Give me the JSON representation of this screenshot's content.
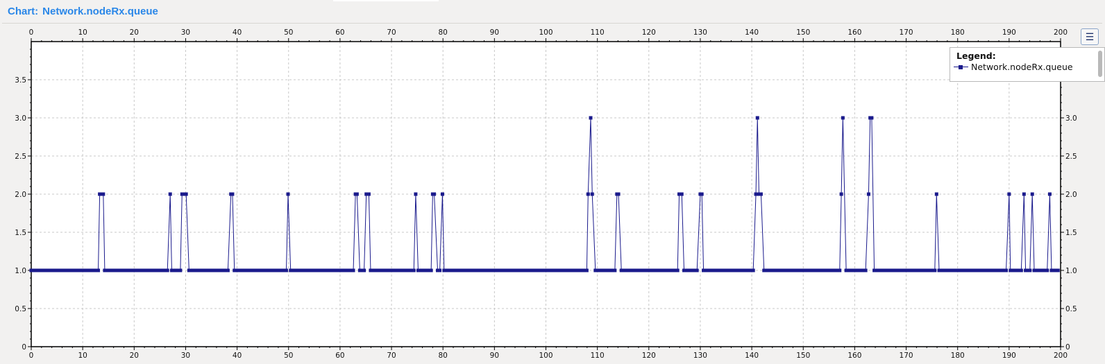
{
  "window": {
    "title_prefix": "Chart:",
    "title": "Network.nodeRx.queue"
  },
  "legend": {
    "title": "Legend:",
    "button_icon": "legend-list-icon"
  },
  "colors": {
    "series": "#1a1a8c",
    "title": "#2a87e8",
    "grid": "#c8c8c8"
  },
  "chart_data": {
    "type": "line",
    "title": "",
    "xlabel": "",
    "ylabel": "",
    "xlim": [
      0,
      200
    ],
    "ylim": [
      0,
      4
    ],
    "x_ticks": [
      0,
      10,
      20,
      30,
      40,
      50,
      60,
      70,
      80,
      90,
      100,
      110,
      120,
      130,
      140,
      150,
      160,
      170,
      180,
      190,
      200
    ],
    "y_ticks_left": [
      0,
      0.5,
      1.0,
      1.5,
      2.0,
      2.5,
      3.0,
      3.5
    ],
    "y_ticks_right": [
      0,
      0.5,
      1.0,
      1.5,
      2.0,
      2.5,
      3.0
    ],
    "y_tick_labels_left": [
      "0",
      "0.5",
      "1.0",
      "1.5",
      "2.0",
      "2.5",
      "3.0",
      "3.5"
    ],
    "y_tick_labels_right": [
      "0",
      "0.5",
      "1.0",
      "1.5",
      "2.0",
      "2.5",
      "3.0"
    ],
    "grid": true,
    "legend_position": "top-right",
    "series": [
      {
        "name": "Network.nodeRx.queue",
        "spikes": [
          {
            "x": 13.3,
            "y": 2
          },
          {
            "x": 13.6,
            "y": 2
          },
          {
            "x": 14.0,
            "y": 2
          },
          {
            "x": 27.0,
            "y": 2
          },
          {
            "x": 29.3,
            "y": 2
          },
          {
            "x": 29.7,
            "y": 2
          },
          {
            "x": 30.1,
            "y": 2
          },
          {
            "x": 38.8,
            "y": 2
          },
          {
            "x": 39.1,
            "y": 2
          },
          {
            "x": 49.9,
            "y": 2
          },
          {
            "x": 63.0,
            "y": 2
          },
          {
            "x": 63.3,
            "y": 2
          },
          {
            "x": 65.1,
            "y": 2
          },
          {
            "x": 65.6,
            "y": 2
          },
          {
            "x": 74.7,
            "y": 2
          },
          {
            "x": 78.0,
            "y": 2
          },
          {
            "x": 78.3,
            "y": 2
          },
          {
            "x": 79.9,
            "y": 2
          },
          {
            "x": 108.2,
            "y": 2
          },
          {
            "x": 108.7,
            "y": 3
          },
          {
            "x": 109.0,
            "y": 2
          },
          {
            "x": 113.8,
            "y": 2
          },
          {
            "x": 114.1,
            "y": 2
          },
          {
            "x": 125.9,
            "y": 2
          },
          {
            "x": 126.4,
            "y": 2
          },
          {
            "x": 130.0,
            "y": 2
          },
          {
            "x": 130.3,
            "y": 2
          },
          {
            "x": 140.8,
            "y": 2
          },
          {
            "x": 141.1,
            "y": 3
          },
          {
            "x": 141.4,
            "y": 2
          },
          {
            "x": 141.8,
            "y": 2
          },
          {
            "x": 157.4,
            "y": 2
          },
          {
            "x": 157.7,
            "y": 3
          },
          {
            "x": 162.7,
            "y": 2
          },
          {
            "x": 163.0,
            "y": 3
          },
          {
            "x": 163.3,
            "y": 3
          },
          {
            "x": 175.9,
            "y": 2
          },
          {
            "x": 190.0,
            "y": 2
          },
          {
            "x": 192.9,
            "y": 2
          },
          {
            "x": 194.5,
            "y": 2
          },
          {
            "x": 197.9,
            "y": 2
          }
        ],
        "baseline_y": 1,
        "x_start": 0,
        "x_end": 199.7
      }
    ]
  }
}
